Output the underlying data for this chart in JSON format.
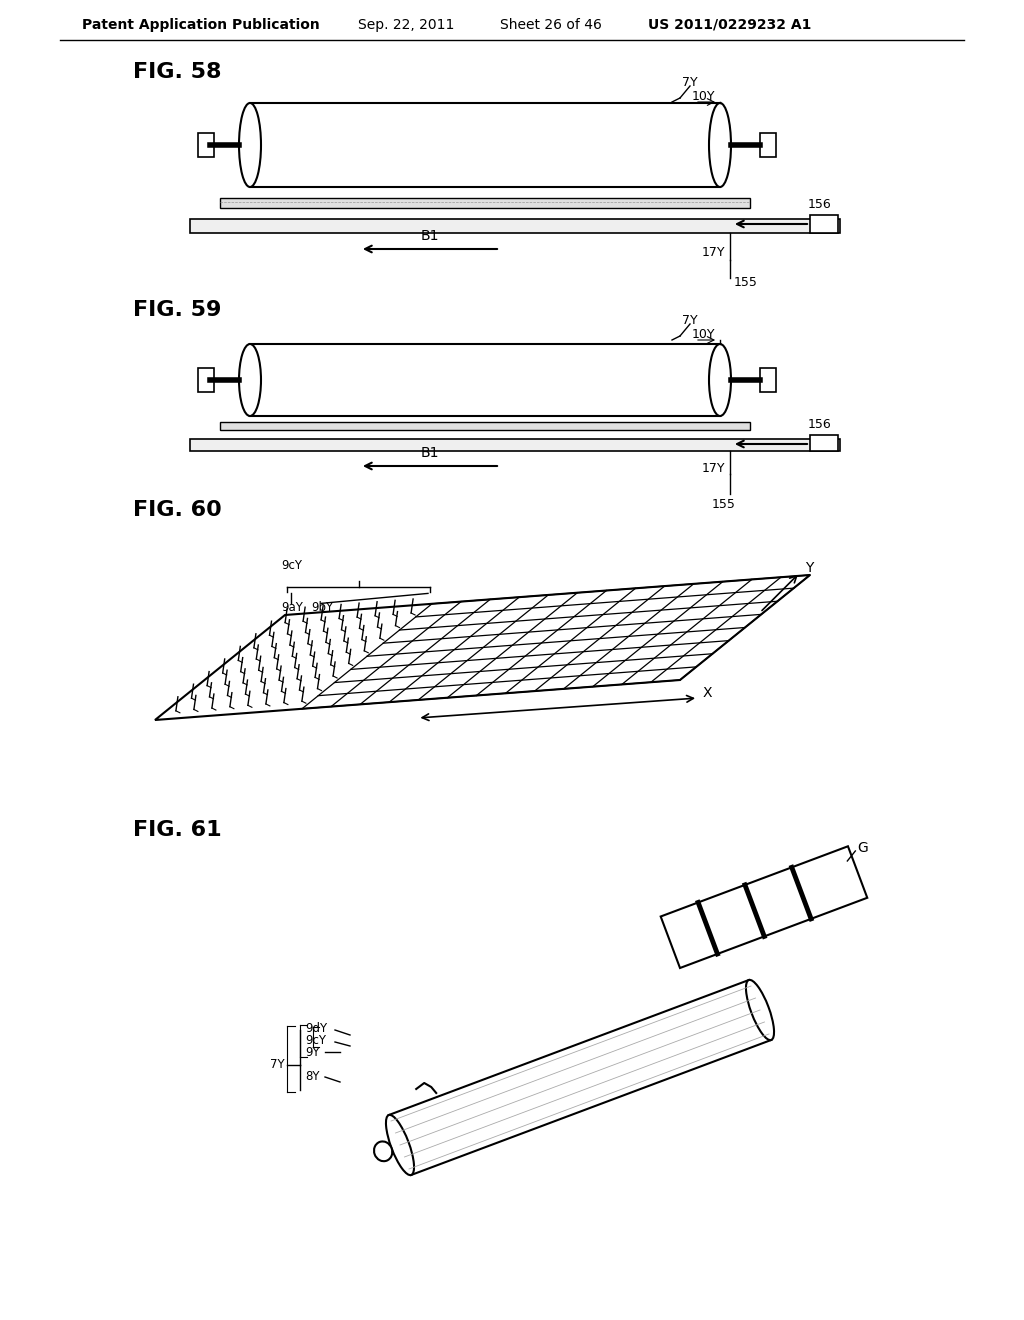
{
  "background_color": "#ffffff",
  "header_text": "Patent Application Publication",
  "header_date": "Sep. 22, 2011",
  "header_sheet": "Sheet 26 of 46",
  "header_patent": "US 2011/0229232 A1",
  "fig58_label": "FIG. 58",
  "fig59_label": "FIG. 59",
  "fig60_label": "FIG. 60",
  "fig61_label": "FIG. 61",
  "text_color": "#000000",
  "line_color": "#000000"
}
